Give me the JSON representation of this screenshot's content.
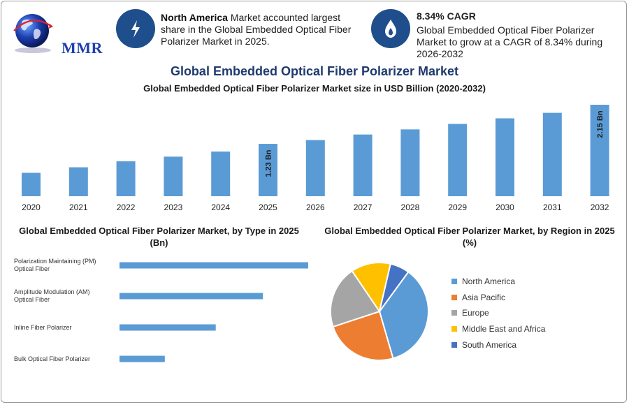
{
  "brand": {
    "logo_text": "MMR"
  },
  "stats": [
    {
      "icon": "lightning-icon",
      "bold": "North America",
      "text": " Market accounted largest share in the Global Embedded Optical Fiber Polarizer Market in 2025."
    },
    {
      "icon": "flame-drop-icon",
      "bold": "8.34% CAGR",
      "text": "Global Embedded Optical Fiber Polarizer Market to grow at a CAGR of 8.34% during 2026-2032"
    }
  ],
  "titles": {
    "main": "Global Embedded Optical Fiber Polarizer Market",
    "sub": "Global Embedded Optical Fiber Polarizer Market size in USD Billion (2020-2032)",
    "by_type": "Global Embedded Optical Fiber Polarizer Market, by Type in 2025 (Bn)",
    "by_region": "Global Embedded Optical Fiber Polarizer Market, by Region in 2025 (%)"
  },
  "colors": {
    "bar": "#5b9bd5",
    "accent": "#1f3a6e",
    "circle": "#1e4f8c"
  },
  "chart_data": [
    {
      "type": "bar",
      "title": "Global Embedded Optical Fiber Polarizer Market size in USD Billion (2020-2032)",
      "categories": [
        "2020",
        "2021",
        "2022",
        "2023",
        "2024",
        "2025",
        "2026",
        "2027",
        "2028",
        "2029",
        "2030",
        "2031",
        "2032"
      ],
      "values": [
        0.55,
        0.68,
        0.82,
        0.93,
        1.05,
        1.23,
        1.32,
        1.45,
        1.57,
        1.7,
        1.83,
        1.96,
        2.15
      ],
      "data_labels": [
        {
          "category": "2025",
          "text": "1.23 Bn"
        },
        {
          "category": "2032",
          "text": "2.15 Bn"
        }
      ],
      "ylim": [
        0,
        2.15
      ]
    },
    {
      "type": "bar",
      "orientation": "horizontal",
      "title": "Global Embedded Optical Fiber Polarizer Market, by Type in 2025 (Bn)",
      "categories": [
        [
          "Polarization Maintaining (PM)",
          "Optical Fiber"
        ],
        [
          "Amplitude Modulation (AM)",
          "Optical Fiber"
        ],
        [
          "Inline Fiber Polarizer"
        ],
        [
          "Bulk Optical Fiber Polarizer"
        ]
      ],
      "values": [
        0.5,
        0.38,
        0.255,
        0.12
      ],
      "xlim": [
        0,
        0.5
      ]
    },
    {
      "type": "pie",
      "title": "Global Embedded Optical Fiber Polarizer Market, by Region in 2025 (%)",
      "categories": [
        "North America",
        "Asia Pacific",
        "Europe",
        "Middle East and Africa",
        "South America"
      ],
      "values": [
        35.5,
        24.4,
        20.6,
        13.1,
        6.4
      ],
      "colors": [
        "#5b9bd5",
        "#ed7d31",
        "#a5a5a5",
        "#ffc000",
        "#4472c4"
      ],
      "legend": "right"
    }
  ]
}
